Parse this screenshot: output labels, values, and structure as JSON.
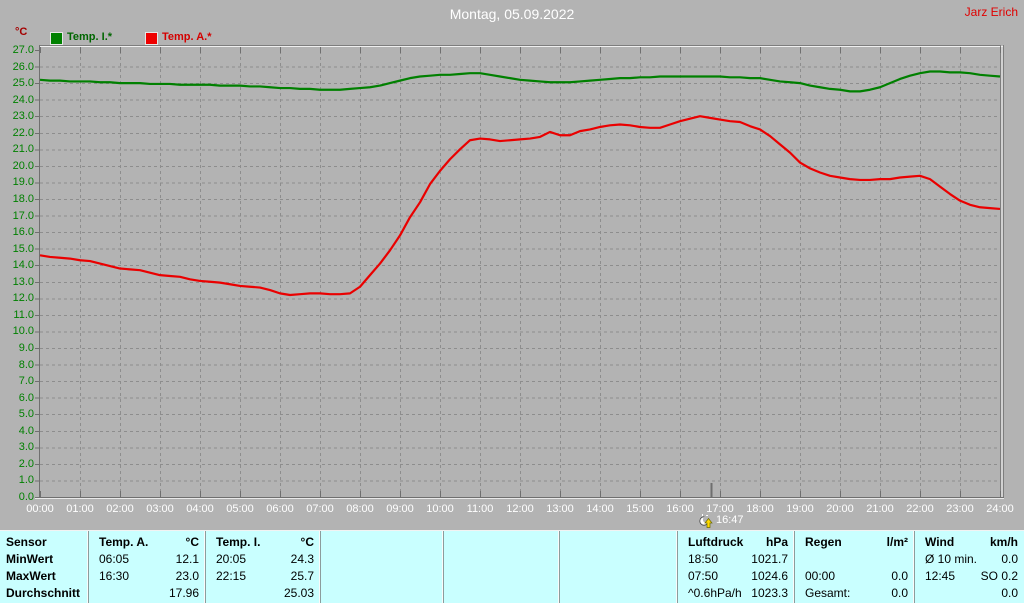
{
  "header": {
    "title": "Montag, 05.09.2022",
    "author": "Jarz Erich"
  },
  "chart_data": {
    "type": "line",
    "title": "Montag, 05.09.2022",
    "ylabel": "°C",
    "xlabel": "",
    "ylim": [
      0,
      27
    ],
    "xlim_hours": [
      0,
      24
    ],
    "grid": true,
    "legend_position": "top-left",
    "y_tick_labels": [
      "27.0",
      "26.0",
      "25.0",
      "24.0",
      "23.0",
      "22.0",
      "21.0",
      "20.0",
      "19.0",
      "18.0",
      "17.0",
      "16.0",
      "15.0",
      "14.0",
      "13.0",
      "12.0",
      "11.0",
      "10.0",
      "9.0",
      "8.0",
      "7.0",
      "6.0",
      "5.0",
      "4.0",
      "3.0",
      "2.0",
      "1.0",
      "0.0"
    ],
    "x_tick_labels": [
      "00:00",
      "01:00",
      "02:00",
      "03:00",
      "04:00",
      "05:00",
      "06:00",
      "07:00",
      "08:00",
      "09:00",
      "10:00",
      "11:00",
      "12:00",
      "13:00",
      "14:00",
      "15:00",
      "16:00",
      "17:00",
      "18:00",
      "19:00",
      "20:00",
      "21:00",
      "22:00",
      "23:00",
      "24:00"
    ],
    "sample_interval_min": 15,
    "series": [
      {
        "name": "Temp. I.*",
        "color": "#008000",
        "values": [
          25.2,
          25.15,
          25.15,
          25.1,
          25.1,
          25.1,
          25.05,
          25.05,
          25.0,
          25.0,
          25.0,
          24.95,
          24.95,
          24.95,
          24.9,
          24.9,
          24.9,
          24.9,
          24.85,
          24.85,
          24.85,
          24.8,
          24.8,
          24.75,
          24.7,
          24.7,
          24.65,
          24.65,
          24.6,
          24.6,
          24.6,
          24.65,
          24.7,
          24.75,
          24.85,
          25.0,
          25.15,
          25.3,
          25.4,
          25.45,
          25.5,
          25.5,
          25.55,
          25.6,
          25.6,
          25.5,
          25.4,
          25.3,
          25.2,
          25.15,
          25.1,
          25.05,
          25.05,
          25.05,
          25.1,
          25.15,
          25.2,
          25.25,
          25.3,
          25.3,
          25.35,
          25.35,
          25.4,
          25.4,
          25.4,
          25.4,
          25.4,
          25.4,
          25.4,
          25.35,
          25.35,
          25.3,
          25.3,
          25.2,
          25.1,
          25.05,
          25.0,
          24.85,
          24.75,
          24.65,
          24.6,
          24.5,
          24.5,
          24.6,
          24.75,
          25.0,
          25.25,
          25.45,
          25.6,
          25.7,
          25.7,
          25.65,
          25.65,
          25.6,
          25.5,
          25.45,
          25.4
        ]
      },
      {
        "name": "Temp. A.*",
        "color": "#ea0000",
        "values": [
          14.6,
          14.5,
          14.45,
          14.4,
          14.3,
          14.25,
          14.1,
          13.95,
          13.8,
          13.75,
          13.7,
          13.55,
          13.4,
          13.35,
          13.3,
          13.15,
          13.05,
          13.0,
          12.95,
          12.85,
          12.75,
          12.7,
          12.65,
          12.5,
          12.3,
          12.2,
          12.25,
          12.3,
          12.3,
          12.25,
          12.25,
          12.3,
          12.7,
          13.4,
          14.1,
          14.9,
          15.8,
          16.9,
          17.8,
          18.9,
          19.7,
          20.4,
          21.0,
          21.55,
          21.65,
          21.6,
          21.5,
          21.55,
          21.6,
          21.65,
          21.75,
          22.05,
          21.85,
          21.85,
          22.1,
          22.2,
          22.35,
          22.45,
          22.5,
          22.45,
          22.35,
          22.3,
          22.3,
          22.5,
          22.7,
          22.85,
          23.0,
          22.9,
          22.8,
          22.7,
          22.65,
          22.4,
          22.2,
          21.8,
          21.3,
          20.8,
          20.2,
          19.85,
          19.6,
          19.4,
          19.3,
          19.2,
          19.15,
          19.15,
          19.2,
          19.2,
          19.3,
          19.35,
          19.4,
          19.2,
          18.75,
          18.3,
          17.9,
          17.65,
          17.5,
          17.45,
          17.4
        ]
      }
    ],
    "moonrise": {
      "time": "16:47",
      "x_hours": 16.783
    }
  },
  "table": {
    "row_labels": [
      "Sensor",
      "MinWert",
      "MaxWert",
      "Durchschnitt"
    ],
    "groups": [
      {
        "name": "Temp. A.",
        "unit": "°C",
        "rows": [
          [
            "06:05",
            "12.1"
          ],
          [
            "16:30",
            "23.0"
          ],
          [
            "",
            "17.96"
          ]
        ]
      },
      {
        "name": "Temp. I.",
        "unit": "°C",
        "rows": [
          [
            "20:05",
            "24.3"
          ],
          [
            "22:15",
            "25.7"
          ],
          [
            "",
            "25.03"
          ]
        ]
      },
      {
        "name": "",
        "unit": "",
        "rows": [
          [
            "",
            ""
          ],
          [
            "",
            ""
          ],
          [
            "",
            ""
          ]
        ]
      },
      {
        "name": "",
        "unit": "",
        "rows": [
          [
            "",
            ""
          ],
          [
            "",
            ""
          ],
          [
            "",
            ""
          ]
        ]
      },
      {
        "name": "",
        "unit": "",
        "rows": [
          [
            "",
            ""
          ],
          [
            "",
            ""
          ],
          [
            "",
            ""
          ]
        ]
      },
      {
        "name": "Luftdruck",
        "unit": "hPa",
        "rows": [
          [
            "18:50",
            "1021.7"
          ],
          [
            "07:50",
            "1024.6"
          ],
          [
            "^0.6hPa/h",
            "1023.3"
          ]
        ]
      },
      {
        "name": "Regen",
        "unit": "l/m²",
        "rows": [
          [
            "",
            ""
          ],
          [
            "00:00",
            "0.0"
          ],
          [
            "Gesamt:",
            "0.0"
          ]
        ]
      },
      {
        "name": "Wind",
        "unit": "km/h",
        "rows": [
          [
            "Ø 10 min.",
            "0.0"
          ],
          [
            "12:45",
            "SO 0.2"
          ],
          [
            "",
            "0.0"
          ]
        ]
      }
    ]
  },
  "colors": {
    "background": "#b3b3b3",
    "grid": "#8d8d8d",
    "axis": "#6f6f6f",
    "temp_i": "#008000",
    "temp_a": "#ea0000",
    "table_background": "#c9ffff",
    "title_text": "#ffffff",
    "author_text": "#e00000"
  }
}
